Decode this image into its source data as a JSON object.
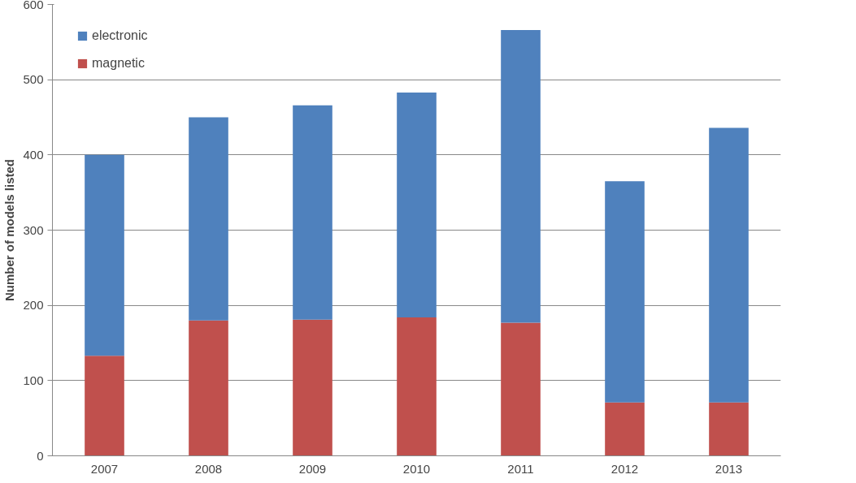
{
  "chart_data": {
    "type": "bar",
    "stacked": true,
    "ylabel": "Number of models listed",
    "categories": [
      "2007",
      "2008",
      "2009",
      "2010",
      "2011",
      "2012",
      "2013"
    ],
    "series": [
      {
        "name": "magnetic",
        "color": "#c0504d",
        "values": [
          133,
          180,
          181,
          184,
          177,
          71,
          71
        ]
      },
      {
        "name": "electronic",
        "color": "#4f81bd",
        "values": [
          267,
          270,
          285,
          299,
          389,
          294,
          365
        ]
      }
    ],
    "ylim": [
      0,
      600
    ],
    "yticks": [
      0,
      100,
      200,
      300,
      400,
      500,
      600
    ],
    "grid": "y",
    "legend": "top left"
  }
}
